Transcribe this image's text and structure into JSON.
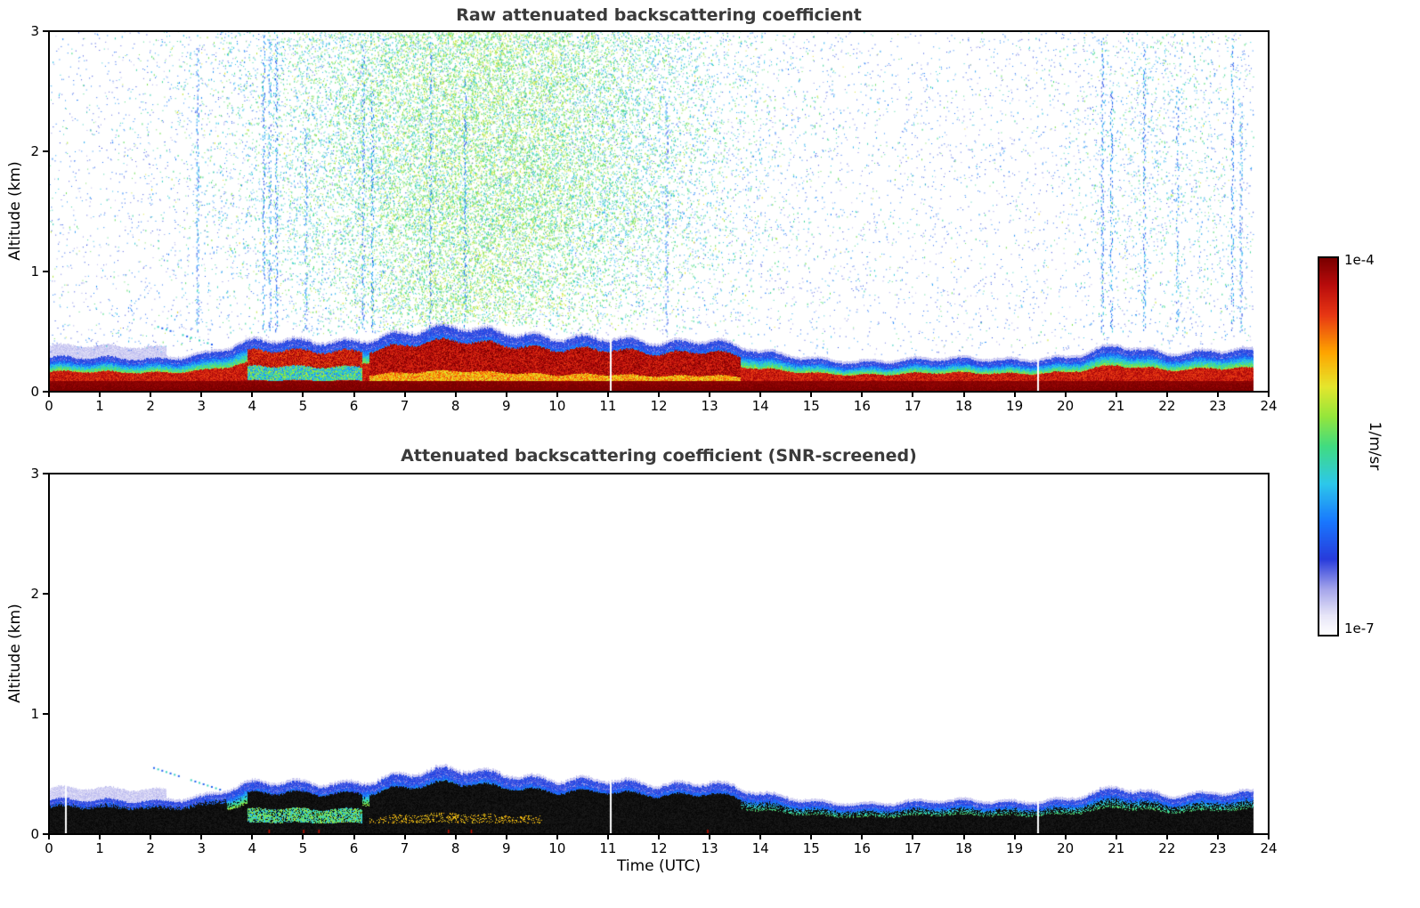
{
  "colorbar": {
    "label": "1/m/sr",
    "max_label": "1e-4",
    "min_label": "1e-7"
  },
  "style": {
    "background": "#ffffff",
    "axis_color": "#000000",
    "title_color": "#3a3a3a",
    "colormap_stops": [
      [
        0.0,
        255,
        255,
        255
      ],
      [
        0.05,
        232,
        230,
        248
      ],
      [
        0.12,
        165,
        165,
        235
      ],
      [
        0.2,
        40,
        60,
        220
      ],
      [
        0.3,
        25,
        120,
        255
      ],
      [
        0.4,
        45,
        200,
        235
      ],
      [
        0.5,
        65,
        220,
        130
      ],
      [
        0.58,
        150,
        230,
        60
      ],
      [
        0.66,
        230,
        230,
        45
      ],
      [
        0.75,
        255,
        165,
        0
      ],
      [
        0.85,
        232,
        55,
        20
      ],
      [
        0.93,
        185,
        12,
        12
      ],
      [
        1.0,
        122,
        0,
        0
      ]
    ]
  },
  "chart_data": [
    {
      "type": "heatmap",
      "title": "Raw attenuated backscattering coefficient",
      "xlabel": "",
      "ylabel": "Altitude (km)",
      "xlim": [
        0,
        24
      ],
      "ylim": [
        0,
        3
      ],
      "xticks": [
        0,
        1,
        2,
        3,
        4,
        5,
        6,
        7,
        8,
        9,
        10,
        11,
        12,
        13,
        14,
        15,
        16,
        17,
        18,
        19,
        20,
        21,
        22,
        23,
        24
      ],
      "yticks": [
        0,
        1,
        2,
        3
      ],
      "value_scale": "log",
      "value_range": [
        1e-07,
        0.0001
      ],
      "value_units": "1/m/sr",
      "data_end_hour": 23.7,
      "surface_layer": {
        "hours": [
          0,
          1,
          2,
          3,
          4,
          5,
          6,
          7,
          8,
          9,
          10,
          11,
          12,
          13,
          14,
          15,
          16,
          17,
          18,
          19,
          20,
          21,
          22,
          23,
          24
        ],
        "top_km": [
          0.28,
          0.27,
          0.27,
          0.3,
          0.4,
          0.41,
          0.42,
          0.47,
          0.52,
          0.5,
          0.43,
          0.42,
          0.4,
          0.43,
          0.31,
          0.26,
          0.24,
          0.25,
          0.26,
          0.26,
          0.27,
          0.36,
          0.31,
          0.34,
          0.32
        ],
        "core_value": "saturated ~1e-4 (dark red) near surface",
        "haze_hours": [
          0,
          2.3
        ]
      },
      "noise": {
        "description": "daylight background noise speckle (blue/cyan/green) above the boundary layer",
        "dense_region_hours": [
          4,
          14
        ],
        "peak_hour": 8.6,
        "alt_range_km": [
          0.35,
          3.0
        ],
        "secondary_region_hours": [
          20,
          23.7
        ],
        "streaks": [
          [
            2.92,
            2.9
          ],
          [
            4.22,
            3.0
          ],
          [
            4.34,
            3.0
          ],
          [
            4.47,
            2.95
          ],
          [
            5.05,
            2.2
          ],
          [
            6.18,
            2.9
          ],
          [
            6.36,
            2.5
          ],
          [
            7.5,
            2.95
          ],
          [
            8.18,
            2.6
          ],
          [
            12.15,
            2.4
          ],
          [
            20.72,
            2.95
          ],
          [
            20.9,
            2.5
          ],
          [
            21.55,
            2.85
          ],
          [
            22.2,
            2.6
          ],
          [
            23.28,
            2.9
          ],
          [
            23.45,
            2.4
          ]
        ],
        "descending_dashes": {
          "from_hour_km": [
            2.05,
            0.55
          ],
          "to_hour_km": [
            3.35,
            0.37
          ]
        },
        "dropout_hours": [
          11.05,
          19.45
        ]
      }
    },
    {
      "type": "heatmap",
      "title": "Attenuated backscattering coefficient (SNR-screened)",
      "xlabel": "Time (UTC)",
      "ylabel": "Altitude (km)",
      "xlim": [
        0,
        24
      ],
      "ylim": [
        0,
        3
      ],
      "xticks": [
        0,
        1,
        2,
        3,
        4,
        5,
        6,
        7,
        8,
        9,
        10,
        11,
        12,
        13,
        14,
        15,
        16,
        17,
        18,
        19,
        20,
        21,
        22,
        23,
        24
      ],
      "yticks": [
        0,
        1,
        2,
        3
      ],
      "value_scale": "log",
      "value_range": [
        1e-07,
        0.0001
      ],
      "value_units": "1/m/sr",
      "data_end_hour": 23.7,
      "screened": true,
      "surface_layer": {
        "hours": [
          0,
          1,
          2,
          3,
          4,
          5,
          6,
          7,
          8,
          9,
          10,
          11,
          12,
          13,
          14,
          15,
          16,
          17,
          18,
          19,
          20,
          21,
          22,
          23,
          24
        ],
        "top_km": [
          0.28,
          0.27,
          0.27,
          0.3,
          0.4,
          0.41,
          0.42,
          0.47,
          0.52,
          0.5,
          0.43,
          0.42,
          0.4,
          0.43,
          0.31,
          0.26,
          0.24,
          0.25,
          0.26,
          0.26,
          0.27,
          0.36,
          0.31,
          0.34,
          0.32
        ],
        "core_value": "strongest returns rendered black; noise above layer removed",
        "haze_hours": [
          0,
          2.3
        ]
      },
      "descending_dashes": {
        "from_hour_km": [
          2.05,
          0.55
        ],
        "to_hour_km": [
          3.35,
          0.37
        ]
      },
      "dropout_hours": [
        0.32,
        11.05,
        19.45
      ],
      "red_marks_hours": [
        4.32,
        5.0,
        5.3,
        7.85,
        8.3,
        12.95
      ]
    }
  ]
}
